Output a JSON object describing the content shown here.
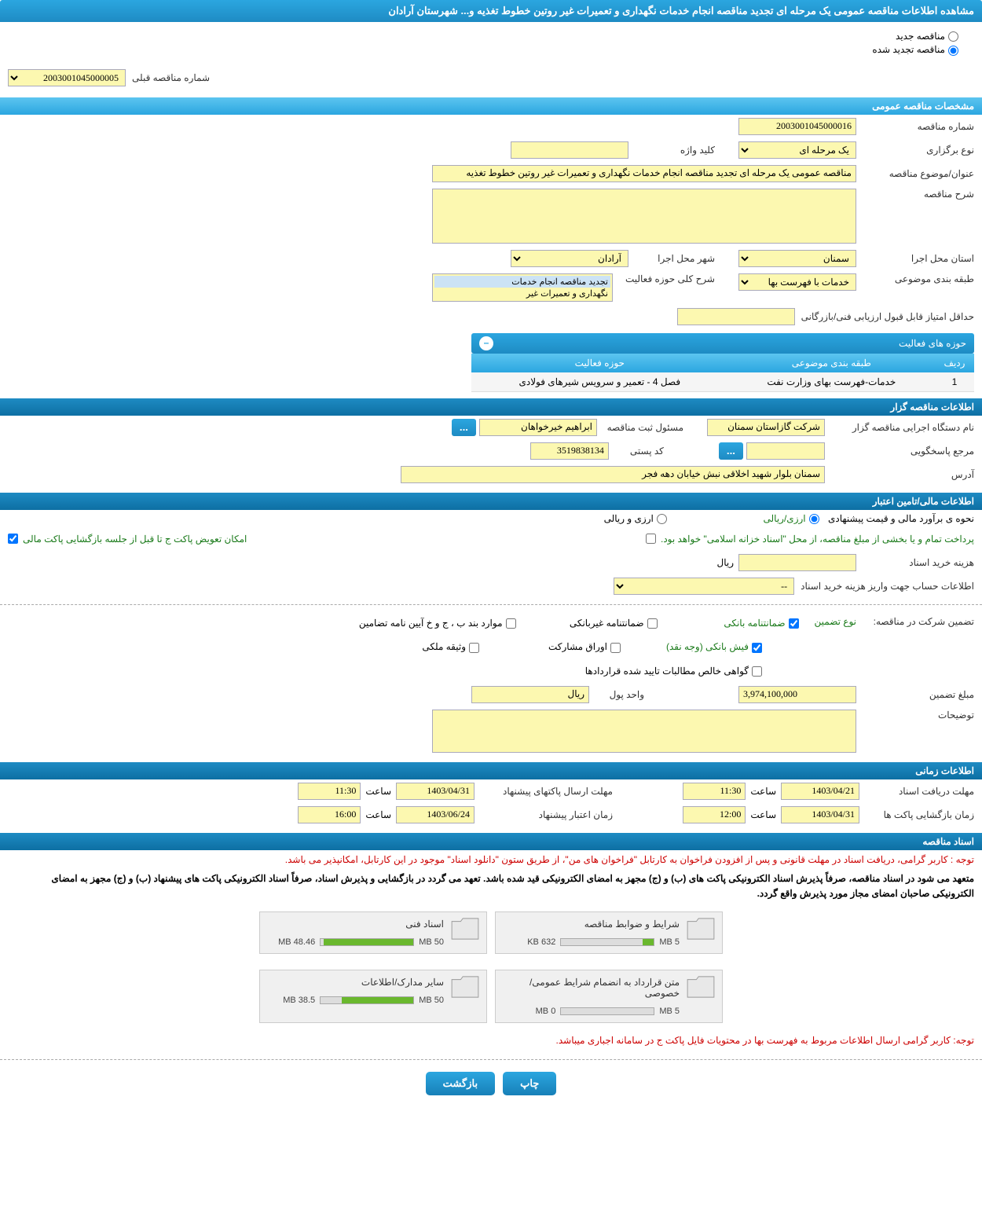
{
  "pageTitle": "مشاهده اطلاعات مناقصه عمومی یک مرحله ای تجدید مناقصه انجام خدمات نگهداری و تعمیرات غیر روتین خطوط تغذیه و... شهرستان آرادان",
  "radioNew": "مناقصه جدید",
  "radioRenewed": "مناقصه تجدید شده",
  "prevTenderLabel": "شماره مناقصه قبلی",
  "prevTenderValue": "2003001045000005",
  "sections": {
    "general": "مشخصات مناقصه عمومی",
    "holder": "اطلاعات مناقصه گزار",
    "finance": "اطلاعات مالی/تامین اعتبار",
    "timing": "اطلاعات زمانی",
    "docs": "اسناد مناقصه"
  },
  "general": {
    "tenderNoLabel": "شماره مناقصه",
    "tenderNoValue": "2003001045000016",
    "typeLabel": "نوع برگزاری",
    "typeValue": "یک مرحله ای",
    "keywordLabel": "کلید واژه",
    "keywordValue": "",
    "titleLabel": "عنوان/موضوع مناقصه",
    "titleValue": "مناقصه عمومی یک مرحله ای تجدید مناقصه انجام خدمات نگهداری و تعمیرات غیر روتین خطوط تغذیه",
    "descLabel": "شرح مناقصه",
    "descValue": "",
    "provinceLabel": "استان محل اجرا",
    "provinceValue": "سمنان",
    "cityLabel": "شهر محل اجرا",
    "cityValue": "آرادان",
    "categoryLabel": "طبقه بندی موضوعی",
    "categoryValue": "خدمات با فهرست بها",
    "scopeLabel": "شرح کلی حوزه فعالیت",
    "scopeOpt1": "تجدید مناقصه انجام خدمات",
    "scopeOpt2": "نگهداری و تعمیرات غیر",
    "minScoreLabel": "حداقل امتیاز قابل قبول ارزیابی فنی/بازرگانی",
    "minScoreValue": ""
  },
  "activities": {
    "header": "حوزه های فعالیت",
    "colRow": "ردیف",
    "colCategory": "طبقه بندی موضوعی",
    "colActivity": "حوزه فعالیت",
    "row1No": "1",
    "row1Cat": "خدمات-فهرست بهای وزارت نفت",
    "row1Act": "فصل 4 - تعمیر و سرویس شیرهای فولادی"
  },
  "holder": {
    "orgLabel": "نام دستگاه اجرایی مناقصه گزار",
    "orgValue": "شرکت گازاستان سمنان",
    "regLabel": "مسئول ثبت مناقصه",
    "regValue": "ابراهیم خیرخواهان",
    "respLabel": "مرجع پاسخگویی",
    "respValue": "",
    "postLabel": "کد پستی",
    "postValue": "3519838134",
    "addressLabel": "آدرس",
    "addressValue": "سمنان بلوار شهید اخلاقی نبش خیابان دهه فجر"
  },
  "finance": {
    "estimateLabel": "نحوه ی برآورد مالی و قیمت پیشنهادی",
    "currencyRial": "ارزی/ریالی",
    "currencyBoth": "ارزی و ریالی",
    "paymentLabel": "پرداخت تمام و یا بخشی از مبلغ مناقصه، از محل \"اسناد خزانه اسلامی\" خواهد بود.",
    "swapLabel": "امکان تعویض پاکت ج تا قبل از جلسه بازگشایی پاکت مالی",
    "docFeeLabel": "هزینه خرید اسناد",
    "docFeeValue": "",
    "docFeeUnit": "ریال",
    "accountLabel": "اطلاعات حساب جهت واریز هزینه خرید اسناد",
    "accountValue": "--",
    "guaranteeTypeLabel": "تضمین شرکت در مناقصه:",
    "guaranteeTypeLabel2": "نوع تضمین",
    "opt1": "ضمانتنامه بانکی",
    "opt2": "ضمانتنامه غیربانکی",
    "opt3": "موارد بند ب ، ج و خ آیین نامه تضامین",
    "opt4": "فیش بانکی (وجه نقد)",
    "opt5": "اوراق مشارکت",
    "opt6": "وثیقه ملکی",
    "opt7": "گواهی خالص مطالبات تایید شده قراردادها",
    "amountLabel": "مبلغ تضمین",
    "amountValue": "3,974,100,000",
    "unitLabel": "واحد پول",
    "unitValue": "ریال",
    "remarksLabel": "توضیحات",
    "remarksValue": ""
  },
  "timing": {
    "docDeadlineLabel": "مهلت دریافت اسناد",
    "proposalDeadlineLabel": "مهلت ارسال پاکتهای پیشنهاد",
    "openLabel": "زمان بازگشایی پاکت ها",
    "validLabel": "زمان اعتبار پیشنهاد",
    "hourLabel": "ساعت",
    "docDate": "1403/04/21",
    "docTime": "11:30",
    "proposalDate": "1403/04/31",
    "proposalTime": "11:30",
    "openDate": "1403/04/31",
    "openTime": "12:00",
    "validDate": "1403/06/24",
    "validTime": "16:00"
  },
  "docs": {
    "warn1": "توجه : کاربر گرامی، دریافت اسناد در مهلت قانونی و پس از افزودن فراخوان به کارتابل \"فراخوان های من\"، از طریق ستون \"دانلود اسناد\" موجود در این کارتابل، امکانپذیر می باشد.",
    "info1": "متعهد می شود در اسناد مناقصه، صرفاً پذیرش اسناد الکترونیکی پاکت های (ب) و (ج) مجهز به امضای الکترونیکی قید شده باشد. تعهد می گردد در بازگشایی و پذیرش اسناد، صرفاً اسناد الکترونیکی پاکت های پیشنهاد (ب) و (ج) مجهز به امضای الکترونیکی صاحبان امضای مجاز مورد پذیرش واقع گردد.",
    "warn2": "توجه: کاربر گرامی ارسال اطلاعات مربوط به فهرست بها در محتویات فایل پاکت ج در سامانه اجباری میباشد.",
    "card1Title": "شرایط و ضوابط مناقصه",
    "card1Used": "632 KB",
    "card1Total": "5 MB",
    "card1Pct": 12,
    "card2Title": "اسناد فنی",
    "card2Used": "48.46 MB",
    "card2Total": "50 MB",
    "card2Pct": 97,
    "card3Title": "متن قرارداد به انضمام شرایط عمومی/خصوصی",
    "card3Used": "0 MB",
    "card3Total": "5 MB",
    "card3Pct": 0,
    "card4Title": "سایر مدارک/اطلاعات",
    "card4Used": "38.5 MB",
    "card4Total": "50 MB",
    "card4Pct": 77
  },
  "buttons": {
    "print": "چاپ",
    "back": "بازگشت",
    "more": "..."
  }
}
